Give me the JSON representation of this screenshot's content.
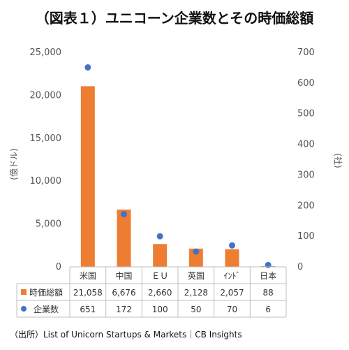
{
  "title": "（図表１）ユニコーン企業数とその時価総額",
  "source": "（出所）List of Unicorn Startups & Markets｜CB Insights",
  "chart_data": {
    "type": "bar",
    "categories": [
      "米国",
      "中国",
      "ＥＵ",
      "英国",
      "ｲﾝﾄﾞ",
      "日本"
    ],
    "series": [
      {
        "name": "時価総額",
        "type": "bar",
        "axis": "left",
        "color": "#ED7D31",
        "values": [
          21058,
          6676,
          2660,
          2128,
          2057,
          88
        ],
        "labels": [
          "21,058",
          "6,676",
          "2,660",
          "2,128",
          "2,057",
          "88"
        ]
      },
      {
        "name": "企業数",
        "type": "scatter",
        "axis": "right",
        "color": "#4472C4",
        "values": [
          651,
          172,
          100,
          50,
          70,
          6
        ],
        "labels": [
          "651",
          "172",
          "100",
          "50",
          "70",
          "6"
        ]
      }
    ],
    "ylabel": "(億ドル)",
    "y2label": "(社)",
    "ylim": [
      0,
      25000
    ],
    "y2lim": [
      0,
      700
    ],
    "yticks": [
      "0",
      "5,000",
      "10,000",
      "15,000",
      "20,000",
      "25,000"
    ],
    "y2ticks": [
      "0",
      "100",
      "200",
      "300",
      "400",
      "500",
      "600",
      "700"
    ],
    "grid": false,
    "legend": "data-table"
  }
}
